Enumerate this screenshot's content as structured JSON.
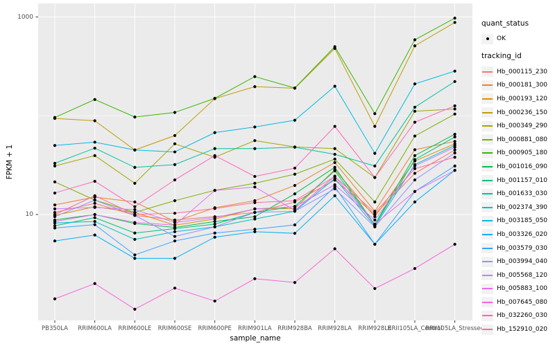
{
  "legend": {
    "quant_status": {
      "title": "quant_status",
      "items": [
        {
          "label": "OK",
          "key": "black-point"
        }
      ]
    },
    "tracking_id": {
      "title": "tracking_id"
    }
  },
  "chart_data": {
    "type": "line",
    "title": "",
    "xlabel": "sample_name",
    "ylabel": "FPKM + 1",
    "y_scale": "log10",
    "y_tick_breaks": [
      1000,
      10
    ],
    "y_minor_breaks": [
      100
    ],
    "ylim": [
      0.8,
      1400
    ],
    "grid": "on",
    "legend_position": "right",
    "panel_bg": "#EBEBEB",
    "grid_color": "#FFFFFF",
    "point_color": "#000000",
    "axis_text_color": "#4D4D4D",
    "categories": [
      "PB350LA",
      "RRIM600LA",
      "RRIM600LE",
      "RRIM600SE",
      "RRIM600PE",
      "RRIM901LA",
      "RRIM928BA",
      "RRIM928LA",
      "RRIM928LE",
      "RRII105LA_Control",
      "RRII105LA_Stressed"
    ],
    "series": [
      {
        "name": "Hb_000115_230",
        "color": "#F8766D",
        "values": [
          10.5,
          13,
          9.8,
          8.8,
          9.5,
          10.5,
          13.4,
          22.3,
          10,
          26.1,
          45
        ]
      },
      {
        "name": "Hb_000181_300",
        "color": "#EA8331",
        "values": [
          12.5,
          15,
          13.4,
          8.5,
          11.7,
          13.8,
          19.7,
          33.6,
          10.8,
          45.3,
          55
        ]
      },
      {
        "name": "Hb_000193_120",
        "color": "#D89000",
        "values": [
          9.8,
          12,
          10.5,
          7.8,
          9.0,
          11.4,
          11.5,
          28.5,
          9.5,
          34.8,
          52
        ]
      },
      {
        "name": "Hb_000236_150",
        "color": "#C09B00",
        "values": [
          94,
          89,
          45,
          63,
          149,
          197,
          190,
          480,
          78,
          510,
          880
        ]
      },
      {
        "name": "Hb_000349_290",
        "color": "#A3A500",
        "values": [
          31,
          39.5,
          20.7,
          52,
          38,
          56,
          48.3,
          46.5,
          23.7,
          111,
          117
        ]
      },
      {
        "name": "Hb_000881_080",
        "color": "#7CAE00",
        "values": [
          21.4,
          14,
          10.5,
          13.8,
          17.6,
          20.7,
          25.6,
          36.4,
          13.4,
          62.3,
          104
        ]
      },
      {
        "name": "Hb_000905_180",
        "color": "#39B600",
        "values": [
          96,
          146,
          97,
          108,
          150,
          249,
          191,
          500,
          105,
          587,
          973
        ]
      },
      {
        "name": "Hb_001016_090",
        "color": "#00BB4E",
        "values": [
          8.8,
          10,
          8.1,
          7.4,
          8.5,
          9.5,
          16.2,
          30.1,
          7.9,
          39.5,
          65
        ]
      },
      {
        "name": "Hb_001157_010",
        "color": "#00BF7D",
        "values": [
          7.7,
          9.3,
          6.5,
          7.2,
          8.0,
          10.5,
          12.1,
          27.7,
          7.8,
          36,
          61
        ]
      },
      {
        "name": "Hb_001633_030",
        "color": "#00C1A3",
        "values": [
          33,
          47,
          30,
          32,
          46.5,
          46.5,
          48,
          40.7,
          31,
          122,
          222
        ]
      },
      {
        "name": "Hb_002374_390",
        "color": "#00BFC4",
        "values": [
          8.2,
          8.5,
          5.6,
          6.7,
          7.5,
          9.0,
          10.8,
          23.2,
          7.6,
          32,
          50
        ]
      },
      {
        "name": "Hb_003185_050",
        "color": "#00BAE0",
        "values": [
          50,
          54,
          45,
          43,
          67.5,
          77,
          90,
          199,
          41.6,
          210,
          283
        ]
      },
      {
        "name": "Hb_003326_020",
        "color": "#00B0F6",
        "values": [
          5.4,
          6.2,
          3.6,
          3.6,
          5.9,
          6.7,
          6.45,
          15.5,
          5.0,
          13.4,
          28
        ]
      },
      {
        "name": "Hb_003579_030",
        "color": "#35A2FF",
        "values": [
          7.3,
          7.9,
          3.9,
          5.4,
          6.5,
          7.1,
          7.85,
          19.1,
          5.0,
          17.1,
          31
        ]
      },
      {
        "name": "Hb_003994_040",
        "color": "#9590FF",
        "values": [
          9.5,
          14,
          9.8,
          6.0,
          7.5,
          10.5,
          10.8,
          18.2,
          7.5,
          22.4,
          42
        ]
      },
      {
        "name": "Hb_005568_120",
        "color": "#C77CFF",
        "values": [
          11.4,
          11.8,
          11.2,
          8.3,
          9.3,
          11.4,
          12.0,
          20,
          8.8,
          31,
          48
        ]
      },
      {
        "name": "Hb_005883_100",
        "color": "#E76BF3",
        "values": [
          8.5,
          10,
          8.3,
          7.8,
          17.5,
          19,
          11.0,
          24.5,
          8.0,
          17.1,
          28
        ]
      },
      {
        "name": "Hb_007645_080",
        "color": "#FA62DB",
        "values": [
          1.4,
          2.0,
          1.1,
          1.8,
          1.33,
          2.24,
          2.05,
          4.5,
          1.78,
          2.84,
          5.0
        ]
      },
      {
        "name": "Hb_032260_030",
        "color": "#FF62BC",
        "values": [
          16.5,
          21.7,
          12,
          22.4,
          39.5,
          24.3,
          29.5,
          78,
          23.7,
          86,
          126
        ]
      },
      {
        "name": "Hb_152910_020",
        "color": "#FF6A98",
        "values": [
          10,
          15.5,
          10,
          10.3,
          11.5,
          13.2,
          13.8,
          24.3,
          10.4,
          29.1,
          38
        ]
      }
    ]
  }
}
